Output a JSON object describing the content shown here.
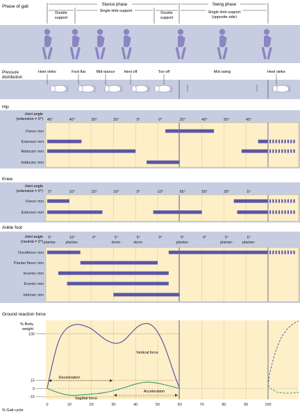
{
  "colors": {
    "panel": "#fdefc8",
    "band": "#c7cde0",
    "bar": "#5a55a8",
    "divider": "#6b6e90",
    "vertical_force": "#4b4aa0",
    "sagittal_force": "#2e9e6a",
    "text": "#222222"
  },
  "header": {
    "phase_of_gait": "Phase of gait",
    "stance_phase": "Stance phase",
    "swing_phase": "Swing phase",
    "double_support_1": [
      "Double",
      "support"
    ],
    "single_limb_support": "Single limb support",
    "double_support_2": [
      "Double",
      "support"
    ],
    "single_limb_support_opp": [
      "Single limb support",
      "(opposite side)"
    ]
  },
  "pressure": {
    "label": [
      "Pressure",
      "distribution"
    ],
    "events": [
      "Heel strike",
      "Foot flat",
      "Mid-stance",
      "Heel off",
      "Toe off",
      "Mid swing",
      "Heel strike"
    ]
  },
  "hip": {
    "title": "Hip",
    "joint_label": [
      "Joint angle",
      "(extension = 0°)"
    ],
    "ticks": [
      "45°",
      "40°",
      "30°",
      "20°",
      "5°",
      "0°",
      "20°",
      "40°",
      "50°",
      "45°"
    ],
    "muscles": [
      "Flexor mm",
      "Extensor mm",
      "Abductor mm",
      "Adductor mm"
    ]
  },
  "knee": {
    "title": "Knee",
    "joint_label": [
      "Joint angle",
      "(extension = 0°)"
    ],
    "ticks": [
      "5°",
      "10°",
      "15°",
      "10°",
      "5°",
      "10°",
      "65°",
      "55°",
      "30°",
      "5°"
    ],
    "muscles": [
      "Flexor mm",
      "Extensor mm"
    ]
  },
  "ankle": {
    "title": "Ankle foot",
    "joint_label": [
      "Joint angle",
      "(neutral = 0°)"
    ],
    "ticks": [
      [
        "5°",
        "plantar-"
      ],
      [
        "10°",
        "plantar-"
      ],
      [
        "0°",
        ""
      ],
      [
        "5°",
        "dorsi-"
      ],
      [
        "5°",
        "dorsi-"
      ],
      [
        "0°",
        ""
      ],
      [
        "5°",
        "plantar-"
      ],
      [
        "0°",
        ""
      ],
      [
        "5°",
        "plantar-"
      ],
      [
        "5°",
        "plantar-"
      ]
    ],
    "muscles": [
      "Dorsiflexor mm",
      "Plantar flexor mm",
      "Inverter mm",
      "Everter mm",
      "Intrinsic mm"
    ]
  },
  "grf": {
    "title": "Ground reaction force",
    "y_label": [
      "% Body",
      "weight"
    ],
    "y_ticks": [
      "100",
      "15",
      "0",
      "-15"
    ],
    "x_label": "% Gait cycle",
    "x_ticks": [
      "0",
      "10",
      "20",
      "30",
      "40",
      "50",
      "60",
      "70",
      "80",
      "90",
      "100"
    ],
    "vertical_force": "Vertical force",
    "sagittal_force": "Sagittal force",
    "deceleration": "Deceleration",
    "acceleration": "Acceleration"
  },
  "chart_data": {
    "type": "line",
    "xlabel": "% Gait cycle",
    "ylabel": "% Body weight",
    "xlim": [
      0,
      100
    ],
    "ylim": [
      -20,
      125
    ],
    "series": [
      {
        "name": "Vertical force",
        "x": [
          0,
          2,
          5,
          8,
          11,
          14,
          17,
          20,
          23,
          26,
          29,
          32,
          35,
          38,
          41,
          44,
          47,
          50,
          53,
          56,
          58,
          60
        ],
        "values": [
          0,
          40,
          88,
          108,
          116,
          118,
          115,
          110,
          100,
          90,
          84,
          82,
          88,
          102,
          114,
          120,
          118,
          105,
          80,
          45,
          20,
          0
        ]
      },
      {
        "name": "Sagittal force",
        "x": [
          0,
          3,
          6,
          9,
          12,
          15,
          18,
          21,
          24,
          27,
          30,
          33,
          36,
          39,
          42,
          45,
          48,
          51,
          54,
          57,
          60
        ],
        "values": [
          0,
          -5,
          -9,
          -12,
          -13,
          -12,
          -11,
          -10,
          -9,
          -7,
          -4,
          -1,
          3,
          7,
          10,
          12,
          11,
          9,
          6,
          3,
          0
        ]
      }
    ]
  }
}
